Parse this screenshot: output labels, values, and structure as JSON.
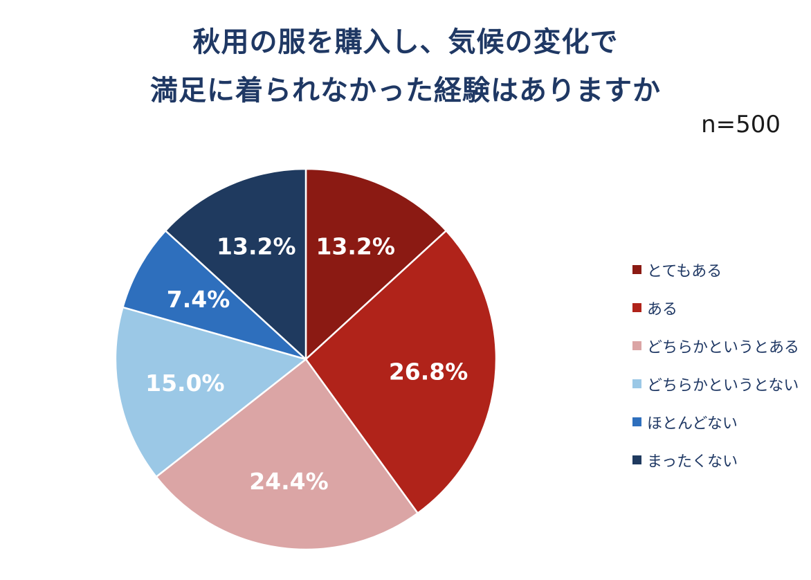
{
  "title_lines": [
    "秋用の服を購入し、気候の変化で",
    "満足に着られなかった経験はありますか"
  ],
  "sample_size": "n=500",
  "chart_data": {
    "type": "pie",
    "title": "秋用の服を購入し、気候の変化で満足に着られなかった経験はありますか",
    "start": "12 o'clock",
    "direction": "clockwise",
    "legend_position": "right",
    "slices": [
      {
        "label": "とてもある",
        "value": 13.2,
        "value_label": "13.2%",
        "color": "#8b1a13"
      },
      {
        "label": "ある",
        "value": 26.8,
        "value_label": "26.8%",
        "color": "#b0231a"
      },
      {
        "label": "どちらかというとある",
        "value": 24.4,
        "value_label": "24.4%",
        "color": "#dba5a5"
      },
      {
        "label": "どちらかというとない",
        "value": 15.0,
        "value_label": "15.0%",
        "color": "#9bc8e6"
      },
      {
        "label": "ほとんどない",
        "value": 7.4,
        "value_label": "7.4%",
        "color": "#2e6fbd"
      },
      {
        "label": "まったくない",
        "value": 13.2,
        "value_label": "13.2%",
        "color": "#1f3a5f"
      }
    ]
  }
}
